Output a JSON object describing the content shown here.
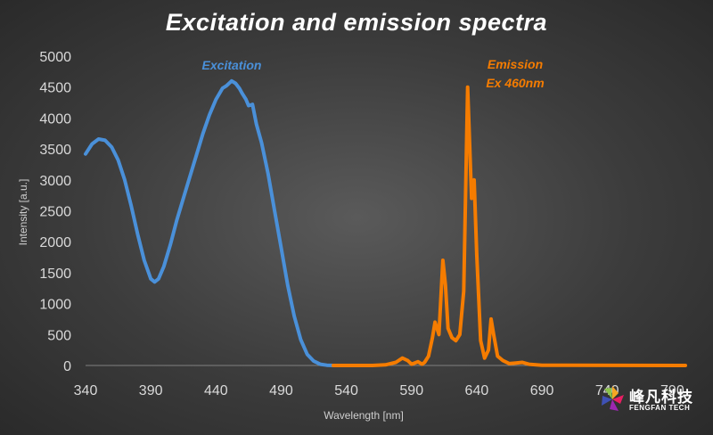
{
  "chart_data": {
    "type": "line",
    "title": "Excitation and emission spectra",
    "xlabel": "Wavelength [nm]",
    "ylabel": "Intensity [a.u.]",
    "xlim": [
      340,
      800
    ],
    "ylim": [
      0,
      5000
    ],
    "x_ticks": [
      "340",
      "390",
      "440",
      "490",
      "540",
      "590",
      "640",
      "690",
      "740",
      "790"
    ],
    "y_ticks": [
      "0",
      "500",
      "1000",
      "1500",
      "2000",
      "2500",
      "3000",
      "3500",
      "4000",
      "4500",
      "5000"
    ],
    "grid": false,
    "legend": "none",
    "annotations": [
      {
        "text": "Excitation",
        "color": "#4a90d9"
      },
      {
        "text": "Emission",
        "color": "#f57c00"
      },
      {
        "text": "Ex 460nm",
        "color": "#f57c00"
      }
    ],
    "series": [
      {
        "name": "Excitation",
        "color": "#4a90d9",
        "points": [
          [
            340,
            3420
          ],
          [
            345,
            3580
          ],
          [
            350,
            3660
          ],
          [
            355,
            3640
          ],
          [
            360,
            3530
          ],
          [
            365,
            3320
          ],
          [
            370,
            3000
          ],
          [
            375,
            2580
          ],
          [
            380,
            2120
          ],
          [
            385,
            1700
          ],
          [
            390,
            1400
          ],
          [
            393,
            1350
          ],
          [
            396,
            1400
          ],
          [
            400,
            1600
          ],
          [
            405,
            1950
          ],
          [
            410,
            2350
          ],
          [
            415,
            2700
          ],
          [
            420,
            3050
          ],
          [
            425,
            3400
          ],
          [
            430,
            3750
          ],
          [
            435,
            4050
          ],
          [
            440,
            4300
          ],
          [
            445,
            4480
          ],
          [
            448,
            4520
          ],
          [
            452,
            4600
          ],
          [
            455,
            4560
          ],
          [
            458,
            4480
          ],
          [
            460,
            4400
          ],
          [
            463,
            4300
          ],
          [
            465,
            4200
          ],
          [
            468,
            4220
          ],
          [
            471,
            3900
          ],
          [
            475,
            3600
          ],
          [
            480,
            3100
          ],
          [
            485,
            2500
          ],
          [
            490,
            1900
          ],
          [
            495,
            1300
          ],
          [
            500,
            800
          ],
          [
            505,
            420
          ],
          [
            510,
            180
          ],
          [
            515,
            70
          ],
          [
            520,
            20
          ],
          [
            525,
            5
          ],
          [
            530,
            0
          ]
        ]
      },
      {
        "name": "Emission",
        "color": "#f57c00",
        "points": [
          [
            530,
            0
          ],
          [
            560,
            0
          ],
          [
            570,
            10
          ],
          [
            578,
            50
          ],
          [
            583,
            120
          ],
          [
            587,
            80
          ],
          [
            590,
            20
          ],
          [
            595,
            60
          ],
          [
            598,
            20
          ],
          [
            600,
            50
          ],
          [
            603,
            150
          ],
          [
            606,
            450
          ],
          [
            608,
            700
          ],
          [
            611,
            500
          ],
          [
            614,
            1700
          ],
          [
            616,
            1300
          ],
          [
            618,
            600
          ],
          [
            621,
            450
          ],
          [
            624,
            400
          ],
          [
            627,
            500
          ],
          [
            630,
            1200
          ],
          [
            633,
            4500
          ],
          [
            636,
            2700
          ],
          [
            638,
            3000
          ],
          [
            640,
            1800
          ],
          [
            643,
            400
          ],
          [
            646,
            120
          ],
          [
            649,
            250
          ],
          [
            651,
            750
          ],
          [
            653,
            500
          ],
          [
            656,
            150
          ],
          [
            660,
            80
          ],
          [
            665,
            30
          ],
          [
            670,
            40
          ],
          [
            675,
            50
          ],
          [
            680,
            20
          ],
          [
            690,
            5
          ],
          [
            800,
            0
          ]
        ]
      }
    ]
  },
  "branding": {
    "logo_cn": "峰凡科技",
    "logo_en": "FENGFAN TECH"
  }
}
